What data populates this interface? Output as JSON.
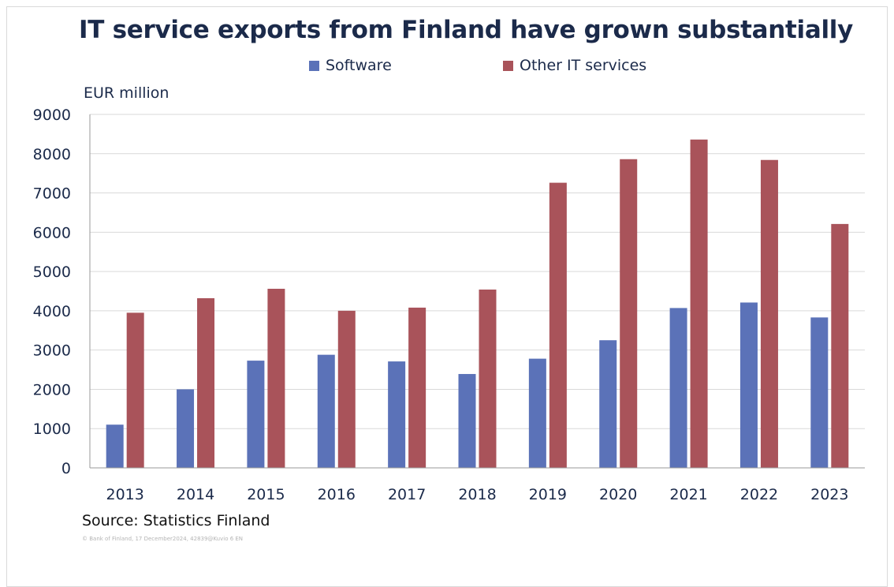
{
  "title": "IT service exports from Finland have grown substantially",
  "y_unit_label": "EUR million",
  "source": "Source: Statistics Finland",
  "credit": "© Bank of Finland, 17 December2024, 42839@Kuvio 6 EN",
  "legend": [
    {
      "label": "Software",
      "color": "#5b72b8"
    },
    {
      "label": "Other IT services",
      "color": "#a9535a"
    }
  ],
  "chart_data": {
    "type": "bar",
    "title": "IT service exports from Finland have grown substantially",
    "xlabel": "",
    "ylabel": "EUR million",
    "ylim": [
      0,
      9000
    ],
    "yticks": [
      0,
      1000,
      2000,
      3000,
      4000,
      5000,
      6000,
      7000,
      8000,
      9000
    ],
    "grid": true,
    "legend_position": "top-center",
    "categories": [
      "2013",
      "2014",
      "2015",
      "2016",
      "2017",
      "2018",
      "2019",
      "2020",
      "2021",
      "2022",
      "2023"
    ],
    "series": [
      {
        "name": "Software",
        "color": "#5b72b8",
        "values": [
          1100,
          2000,
          2730,
          2880,
          2710,
          2390,
          2780,
          3250,
          4070,
          4210,
          3830
        ]
      },
      {
        "name": "Other IT services",
        "color": "#a9535a",
        "values": [
          3950,
          4320,
          4560,
          4000,
          4080,
          4540,
          7260,
          7860,
          8360,
          7840,
          6210
        ]
      }
    ]
  }
}
